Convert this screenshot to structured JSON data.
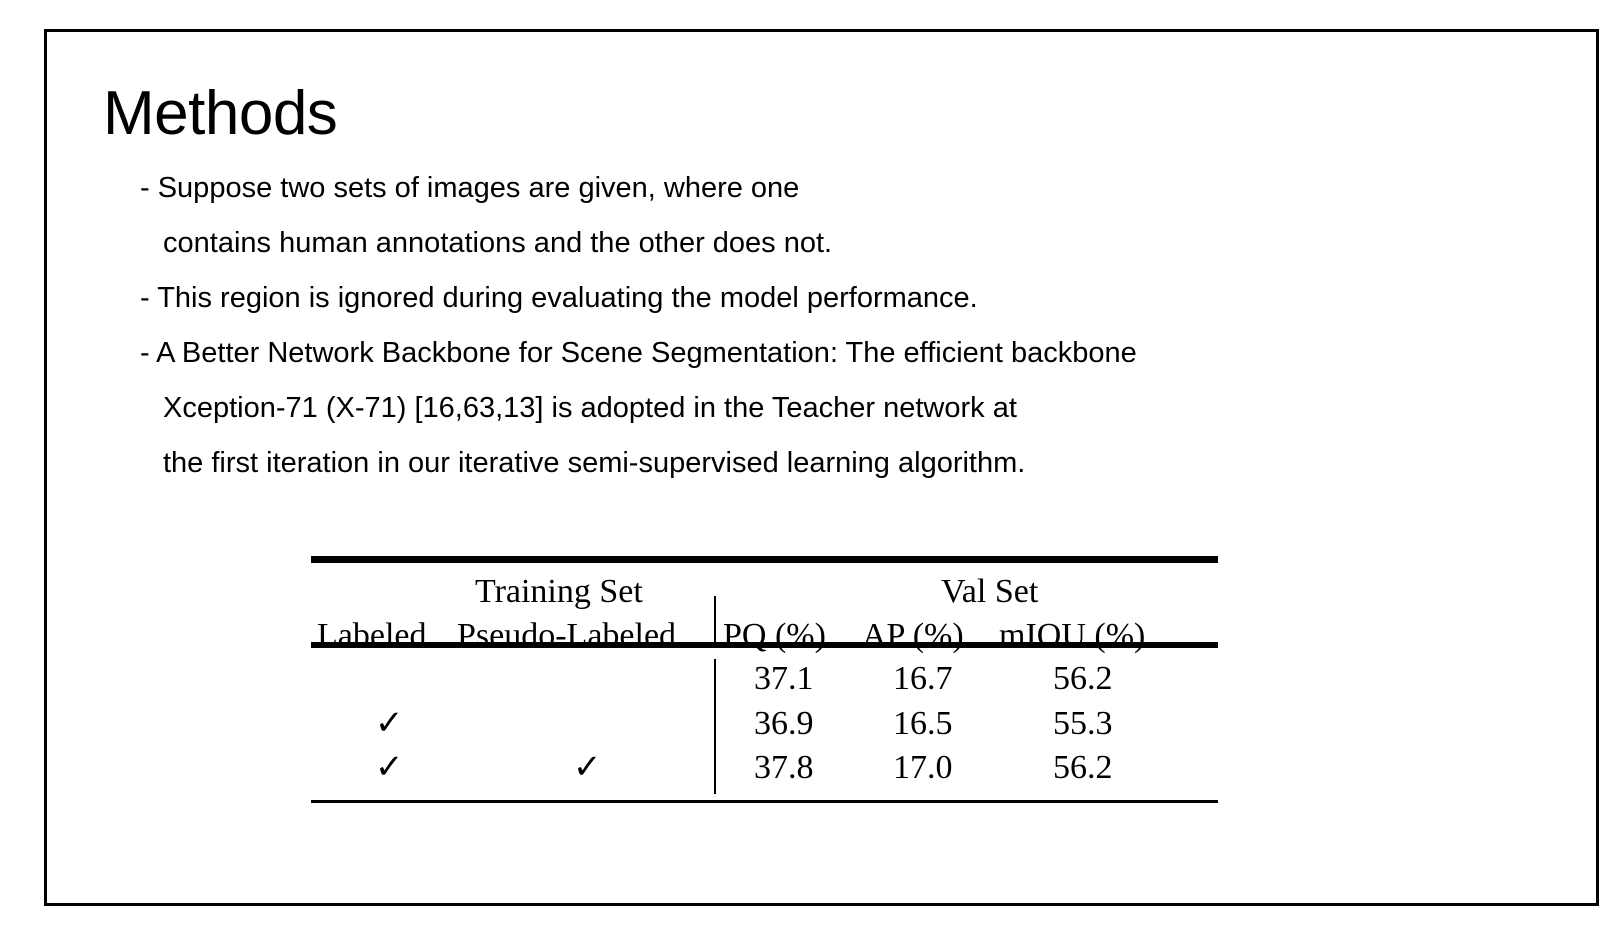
{
  "slide": {
    "title": "Methods",
    "bullets": [
      "- Suppose two sets of images are given, where one",
      "contains human annotations and the other does not.",
      "- This region is ignored during evaluating the model performance.",
      "- A Better Network Backbone for Scene Segmentation: The efficient backbone",
      "Xception-71 (X-71) [16,63,13] is adopted in the Teacher network at",
      "the first iteration in our iterative semi-supervised learning algorithm."
    ]
  },
  "table": {
    "group_headers": {
      "training_set": "Training Set",
      "val_set": "Val Set"
    },
    "columns": [
      "Labeled",
      "Pseudo-Labeled",
      "PQ (%)",
      "AP (%)",
      "mIOU (%)"
    ],
    "rows": [
      {
        "labeled": "",
        "pseudo_labeled": "",
        "pq": "37.1",
        "ap": "16.7",
        "miou": "56.2"
      },
      {
        "labeled": "✓",
        "pseudo_labeled": "",
        "pq": "36.9",
        "ap": "16.5",
        "miou": "55.3"
      },
      {
        "labeled": "✓",
        "pseudo_labeled": "✓",
        "pq": "37.8",
        "ap": "17.0",
        "miou": "56.2"
      }
    ]
  }
}
